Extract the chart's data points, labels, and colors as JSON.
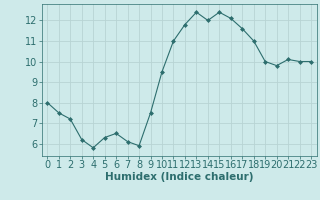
{
  "x": [
    0,
    1,
    2,
    3,
    4,
    5,
    6,
    7,
    8,
    9,
    10,
    11,
    12,
    13,
    14,
    15,
    16,
    17,
    18,
    19,
    20,
    21,
    22,
    23
  ],
  "y": [
    8.0,
    7.5,
    7.2,
    6.2,
    5.8,
    6.3,
    6.5,
    6.1,
    5.9,
    7.5,
    9.5,
    11.0,
    11.8,
    12.4,
    12.0,
    12.4,
    12.1,
    11.6,
    11.0,
    10.0,
    9.8,
    10.1,
    10.0,
    10.0
  ],
  "line_color": "#2d6e6e",
  "marker": "D",
  "marker_size": 2.0,
  "bg_color": "#ceeaea",
  "grid_color": "#b8d4d4",
  "tick_color": "#2d6e6e",
  "label_color": "#2d6e6e",
  "xlabel": "Humidex (Indice chaleur)",
  "ylim": [
    5.4,
    12.8
  ],
  "xlim": [
    -0.5,
    23.5
  ],
  "yticks": [
    6,
    7,
    8,
    9,
    10,
    11,
    12
  ],
  "xticks": [
    0,
    1,
    2,
    3,
    4,
    5,
    6,
    7,
    8,
    9,
    10,
    11,
    12,
    13,
    14,
    15,
    16,
    17,
    18,
    19,
    20,
    21,
    22,
    23
  ],
  "xlabel_fontsize": 7.5,
  "tick_fontsize": 7
}
